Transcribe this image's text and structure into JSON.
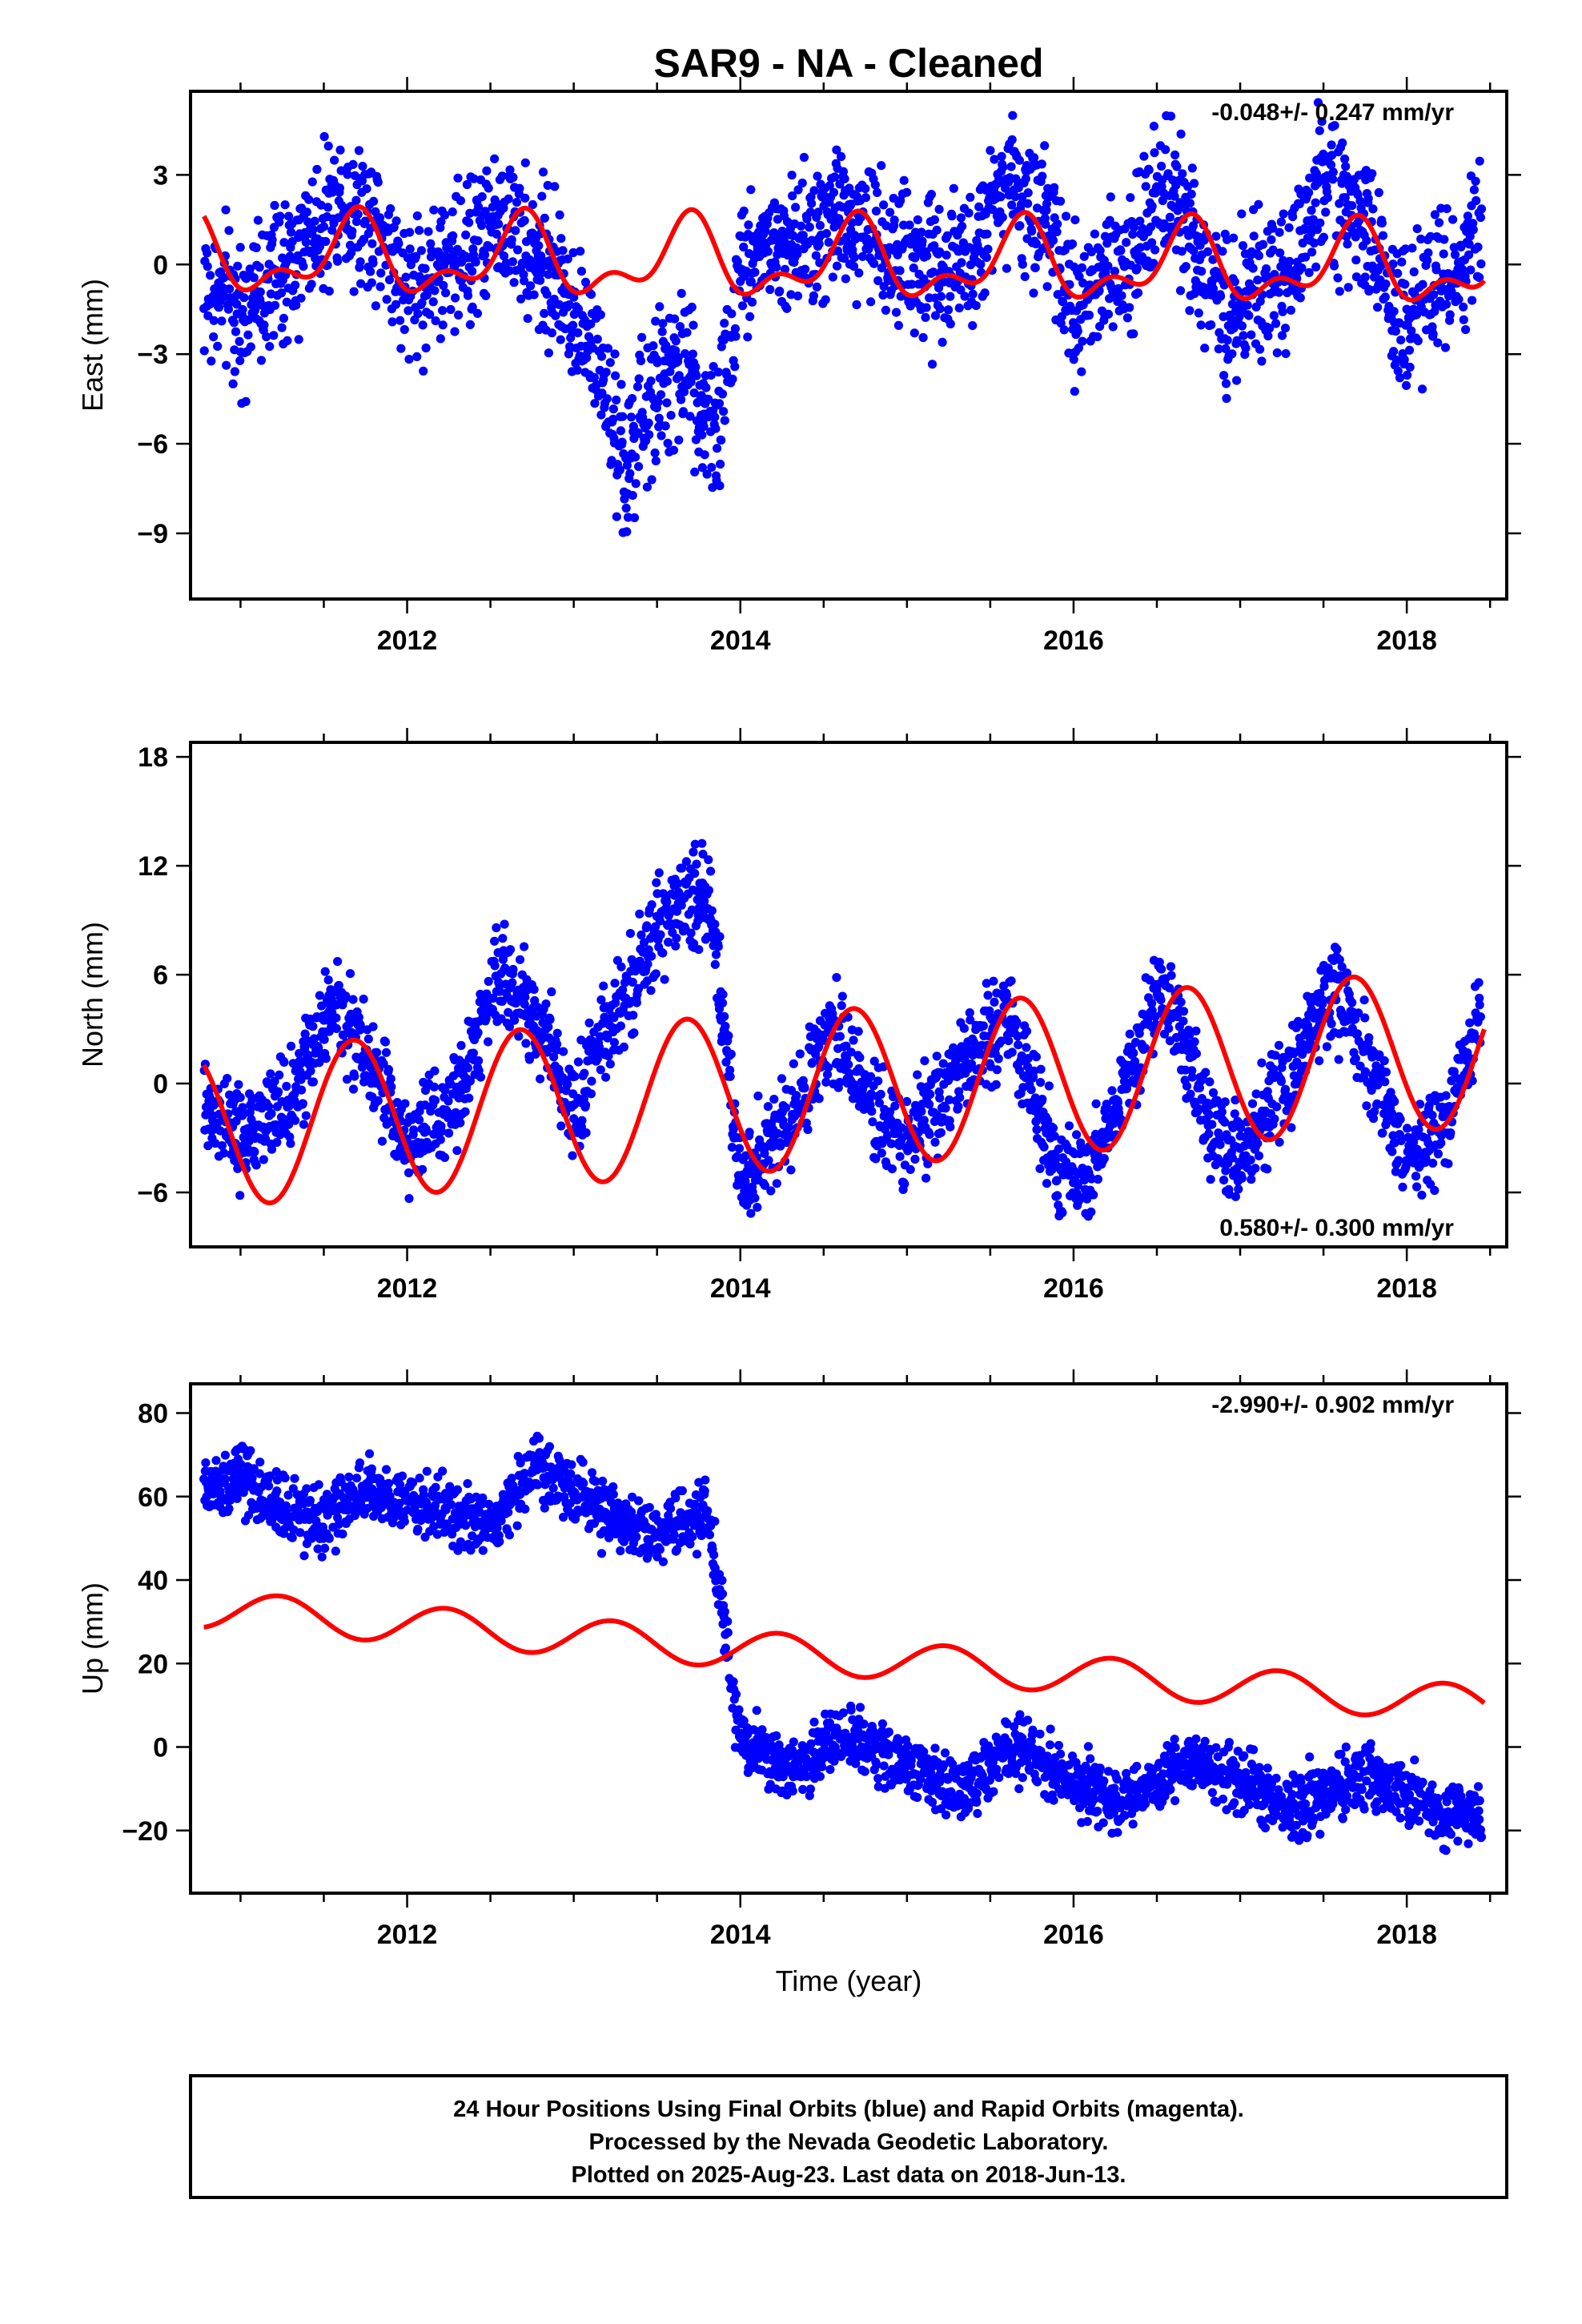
{
  "chart_data": {
    "type": "scatter",
    "title": "SAR9  - NA - Cleaned",
    "x_label": "Time (year)",
    "x_ticks": [
      "2012",
      "2014",
      "2016",
      "2018"
    ],
    "x_range": [
      2010.7,
      2018.6
    ],
    "series_colors": {
      "observed": "#0000ff",
      "model": "#ff0000"
    },
    "panels": [
      {
        "ylabel": "East (mm)",
        "ylim": [
          -11.2,
          5.8
        ],
        "yticks": [
          "3",
          "0",
          "−3",
          "−6",
          "−9"
        ],
        "ytick_values": [
          3,
          0,
          -3,
          -6,
          -9
        ],
        "rate_text": "-0.048+/- 0.247 mm/yr",
        "rate_position": "top-right",
        "observed_trend": [
          [
            2010.8,
            -1.0
          ],
          [
            2011.0,
            -1.5
          ],
          [
            2011.3,
            0.0
          ],
          [
            2011.6,
            2.3
          ],
          [
            2011.8,
            1.5
          ],
          [
            2012.0,
            -1.0
          ],
          [
            2012.3,
            0.2
          ],
          [
            2012.6,
            1.6
          ],
          [
            2012.9,
            -0.5
          ],
          [
            2013.1,
            -2.5
          ],
          [
            2013.3,
            -7.0
          ],
          [
            2013.5,
            -4.0
          ],
          [
            2013.7,
            -3.5
          ],
          [
            2013.85,
            -6.0
          ],
          [
            2014.0,
            0.3
          ],
          [
            2014.3,
            0.5
          ],
          [
            2014.6,
            2.0
          ],
          [
            2014.9,
            0.6
          ],
          [
            2015.1,
            -0.3
          ],
          [
            2015.4,
            0.6
          ],
          [
            2015.6,
            3.0
          ],
          [
            2015.9,
            0.5
          ],
          [
            2016.0,
            -1.5
          ],
          [
            2016.3,
            0.3
          ],
          [
            2016.6,
            2.5
          ],
          [
            2016.9,
            -1.5
          ],
          [
            2017.1,
            -1.0
          ],
          [
            2017.3,
            -0.5
          ],
          [
            2017.5,
            3.0
          ],
          [
            2017.8,
            0.3
          ],
          [
            2018.0,
            -1.8
          ],
          [
            2018.2,
            -0.6
          ],
          [
            2018.45,
            1.2
          ]
        ],
        "observed_noise": 1.2,
        "model_params": {
          "ref": 2014.0,
          "offset": 0.1,
          "trend": -0.048,
          "annual_cos": -0.45,
          "annual_sin": -1.0,
          "semiannual_cos": -0.6,
          "semiannual_sin": 0.25,
          "offsets": []
        }
      },
      {
        "ylabel": "North (mm)",
        "ylim": [
          -9,
          18.8
        ],
        "yticks": [
          "18",
          "12",
          "6",
          "0",
          "−6"
        ],
        "ytick_values": [
          18,
          12,
          6,
          0,
          -6
        ],
        "rate_text": "0.580+/- 0.300 mm/yr",
        "rate_position": "bottom-right",
        "observed_trend": [
          [
            2010.8,
            -1.0
          ],
          [
            2011.0,
            -3.0
          ],
          [
            2011.3,
            -1.0
          ],
          [
            2011.55,
            4.5
          ],
          [
            2011.8,
            0.5
          ],
          [
            2012.0,
            -3.5
          ],
          [
            2012.3,
            -1.0
          ],
          [
            2012.55,
            6.5
          ],
          [
            2012.8,
            3.0
          ],
          [
            2013.0,
            -1.5
          ],
          [
            2013.3,
            5.0
          ],
          [
            2013.55,
            9.0
          ],
          [
            2013.8,
            11.0
          ],
          [
            2014.0,
            -5.5
          ],
          [
            2014.3,
            -2.0
          ],
          [
            2014.55,
            3.5
          ],
          [
            2014.8,
            -2.0
          ],
          [
            2015.0,
            -3.0
          ],
          [
            2015.3,
            0.5
          ],
          [
            2015.6,
            4.0
          ],
          [
            2015.9,
            -4.5
          ],
          [
            2016.1,
            -5.0
          ],
          [
            2016.3,
            0.0
          ],
          [
            2016.55,
            5.5
          ],
          [
            2016.8,
            -2.0
          ],
          [
            2017.0,
            -4.5
          ],
          [
            2017.3,
            0.5
          ],
          [
            2017.55,
            5.5
          ],
          [
            2017.8,
            0.0
          ],
          [
            2018.0,
            -4.0
          ],
          [
            2018.2,
            -3.0
          ],
          [
            2018.45,
            4.0
          ]
        ],
        "observed_noise": 1.3,
        "model_params": {
          "ref": 2014.0,
          "offset": -0.6,
          "trend": 0.58,
          "annual_cos": -1.9,
          "annual_sin": -3.9,
          "semiannual_cos": 0.0,
          "semiannual_sin": 0.0,
          "offsets": []
        }
      },
      {
        "ylabel": "Up (mm)",
        "ylim": [
          -35,
          87
        ],
        "yticks": [
          "80",
          "60",
          "40",
          "20",
          "0",
          "−20"
        ],
        "ytick_values": [
          80,
          60,
          40,
          20,
          0,
          -20
        ],
        "rate_text": "-2.990+/- 0.902 mm/yr",
        "rate_position": "top-right",
        "observed_trend": [
          [
            2010.8,
            62.0
          ],
          [
            2011.0,
            64.0
          ],
          [
            2011.3,
            56.0
          ],
          [
            2011.5,
            54.0
          ],
          [
            2011.75,
            63.0
          ],
          [
            2012.0,
            59.0
          ],
          [
            2012.3,
            55.0
          ],
          [
            2012.5,
            52.0
          ],
          [
            2012.75,
            67.0
          ],
          [
            2013.0,
            62.0
          ],
          [
            2013.3,
            53.0
          ],
          [
            2013.5,
            50.0
          ],
          [
            2013.8,
            57.0
          ],
          [
            2014.0,
            2.0
          ],
          [
            2014.3,
            -5.0
          ],
          [
            2014.7,
            3.0
          ],
          [
            2015.0,
            -5.0
          ],
          [
            2015.3,
            -10.0
          ],
          [
            2015.7,
            0.0
          ],
          [
            2016.0,
            -8.0
          ],
          [
            2016.3,
            -14.0
          ],
          [
            2016.7,
            -3.0
          ],
          [
            2017.0,
            -8.0
          ],
          [
            2017.3,
            -15.0
          ],
          [
            2017.7,
            -7.0
          ],
          [
            2018.0,
            -11.0
          ],
          [
            2018.2,
            -16.0
          ],
          [
            2018.45,
            -17.0
          ]
        ],
        "observed_noise": 3.8,
        "model_params": {
          "ref": 2014.0,
          "offset": 23.4,
          "trend": -2.99,
          "annual_cos": 0.5,
          "annual_sin": 4.5,
          "semiannual_cos": 0.0,
          "semiannual_sin": 0.0,
          "offsets": []
        }
      }
    ]
  },
  "footer": {
    "line1": "24 Hour Positions Using Final Orbits (blue) and Rapid Orbits (magenta).",
    "line2": "Processed by the Nevada Geodetic Laboratory.",
    "line3": "Plotted on 2025-Aug-23. Last data on 2018-Jun-13."
  }
}
